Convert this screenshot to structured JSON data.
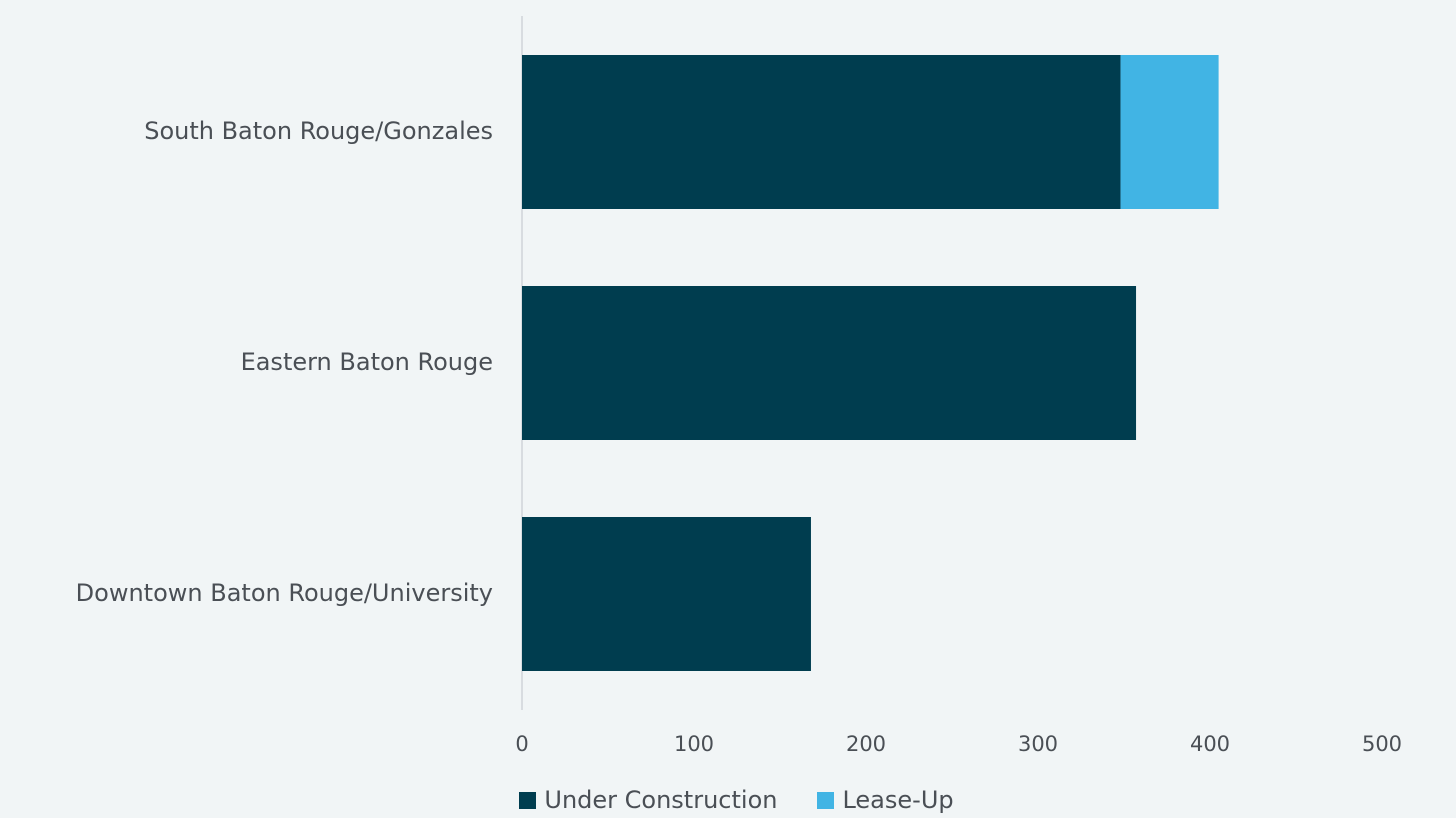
{
  "chart_data": {
    "type": "bar",
    "orientation": "horizontal",
    "stacked": true,
    "categories": [
      "South Baton Rouge/Gonzales",
      "Eastern Baton Rouge",
      "Downtown Baton Rouge/University"
    ],
    "series": [
      {
        "name": "Under Construction",
        "color": "#003d4f",
        "values": [
          348,
          357,
          168
        ]
      },
      {
        "name": "Lease-Up",
        "color": "#41b4e4",
        "values": [
          57,
          0,
          0
        ]
      }
    ],
    "x_ticks": [
      "0",
      "100",
      "200",
      "300",
      "400",
      "500"
    ],
    "xlim": [
      0,
      500
    ],
    "title": "",
    "xlabel": "",
    "ylabel": "",
    "grid": false,
    "legend_position": "bottom"
  }
}
